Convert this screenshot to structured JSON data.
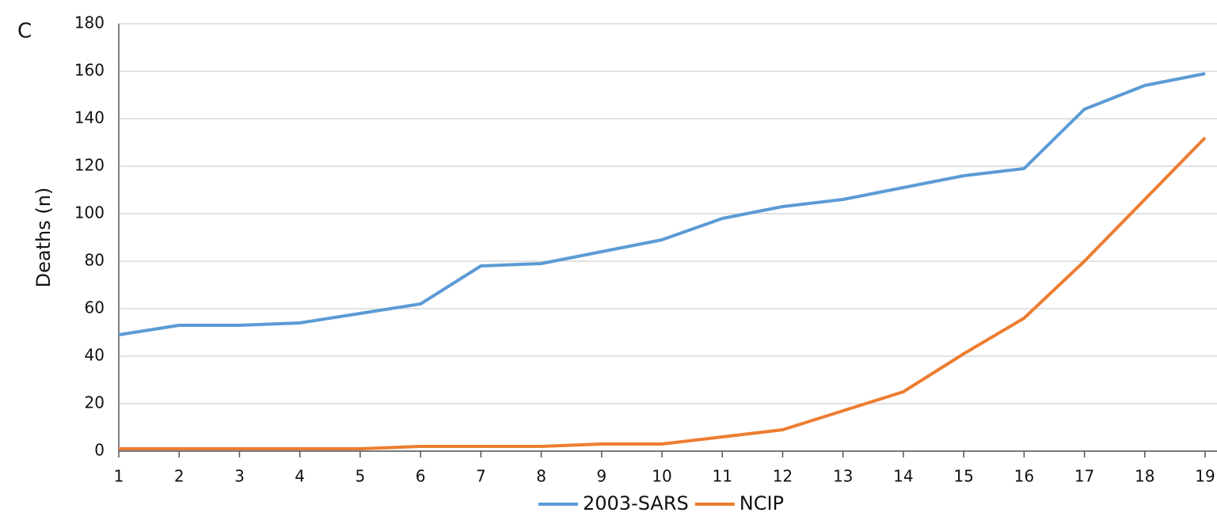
{
  "chart_data": {
    "type": "line",
    "panel_label": "C",
    "y_label": "Deaths (n)",
    "categories": [
      "1",
      "2",
      "3",
      "4",
      "5",
      "6",
      "7",
      "8",
      "9",
      "10",
      "11",
      "12",
      "13",
      "14",
      "15",
      "16",
      "17",
      "18",
      "19"
    ],
    "series": [
      {
        "name": "2003-SARS",
        "color": "#5b9bd5",
        "values": [
          49,
          53,
          53,
          54,
          58,
          62,
          78,
          79,
          84,
          89,
          98,
          103,
          106,
          111,
          116,
          119,
          144,
          154,
          159
        ]
      },
      {
        "name": "NCIP",
        "color": "#ed7d31",
        "values": [
          1,
          1,
          1,
          1,
          1,
          2,
          2,
          2,
          3,
          3,
          6,
          9,
          17,
          25,
          41,
          56,
          80,
          106,
          132
        ]
      }
    ],
    "ylim": [
      0,
      180
    ],
    "yticks": [
      0,
      20,
      40,
      60,
      80,
      100,
      120,
      140,
      160,
      180
    ],
    "grid": true,
    "legend": "bottom"
  }
}
